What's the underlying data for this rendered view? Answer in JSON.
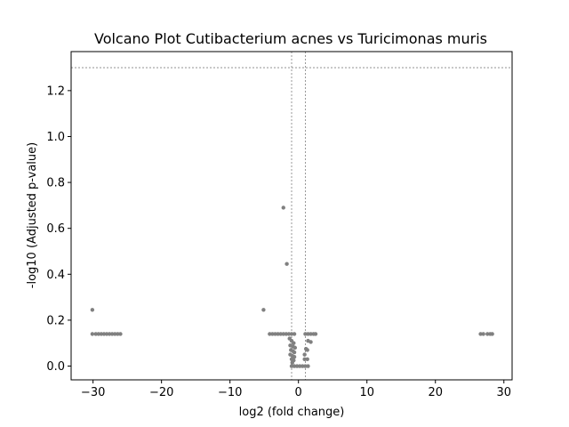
{
  "chart_data": {
    "type": "scatter",
    "title": "Volcano Plot Cutibacterium acnes vs Turicimonas muris",
    "xlabel": "log2 (fold change)",
    "ylabel": "-log10 (Adjusted p-value)",
    "xlim": [
      -33.2,
      31.2
    ],
    "ylim": [
      -0.06,
      1.37
    ],
    "xticks": [
      -30,
      -20,
      -10,
      0,
      10,
      20,
      30
    ],
    "xtick_labels": [
      "−30",
      "−20",
      "−10",
      "0",
      "10",
      "20",
      "30"
    ],
    "yticks": [
      0.0,
      0.2,
      0.4,
      0.6,
      0.8,
      1.0,
      1.2
    ],
    "ytick_labels": [
      "0.0",
      "0.2",
      "0.4",
      "0.6",
      "0.8",
      "1.0",
      "1.2"
    ],
    "threshold_lines": {
      "horizontal": [
        1.3
      ],
      "vertical": [
        -1,
        1
      ],
      "style": "dashed",
      "color": "#808080"
    },
    "grid": false,
    "legend": null,
    "point_color": "#808080",
    "points": [
      {
        "x": -30.1,
        "y": 0.245
      },
      {
        "x": -30.1,
        "y": 0.14
      },
      {
        "x": -29.6,
        "y": 0.14
      },
      {
        "x": -29.2,
        "y": 0.14
      },
      {
        "x": -28.8,
        "y": 0.14
      },
      {
        "x": -28.4,
        "y": 0.14
      },
      {
        "x": -28.0,
        "y": 0.14
      },
      {
        "x": -27.6,
        "y": 0.14
      },
      {
        "x": -27.2,
        "y": 0.14
      },
      {
        "x": -26.8,
        "y": 0.14
      },
      {
        "x": -26.4,
        "y": 0.14
      },
      {
        "x": -26.0,
        "y": 0.14
      },
      {
        "x": -5.1,
        "y": 0.245
      },
      {
        "x": -2.2,
        "y": 0.69
      },
      {
        "x": -1.7,
        "y": 0.445
      },
      {
        "x": -4.2,
        "y": 0.14
      },
      {
        "x": -3.8,
        "y": 0.14
      },
      {
        "x": -3.4,
        "y": 0.14
      },
      {
        "x": -3.0,
        "y": 0.14
      },
      {
        "x": -2.6,
        "y": 0.14
      },
      {
        "x": -2.2,
        "y": 0.14
      },
      {
        "x": -1.8,
        "y": 0.14
      },
      {
        "x": -1.4,
        "y": 0.14
      },
      {
        "x": -1.0,
        "y": 0.14
      },
      {
        "x": -0.6,
        "y": 0.14
      },
      {
        "x": -1.3,
        "y": 0.12
      },
      {
        "x": -1.0,
        "y": 0.11
      },
      {
        "x": -0.7,
        "y": 0.1
      },
      {
        "x": -1.2,
        "y": 0.09
      },
      {
        "x": -0.8,
        "y": 0.085
      },
      {
        "x": -0.5,
        "y": 0.08
      },
      {
        "x": -1.1,
        "y": 0.07
      },
      {
        "x": -0.8,
        "y": 0.065
      },
      {
        "x": -0.6,
        "y": 0.06
      },
      {
        "x": -1.2,
        "y": 0.05
      },
      {
        "x": -0.9,
        "y": 0.045
      },
      {
        "x": -0.6,
        "y": 0.04
      },
      {
        "x": -1.0,
        "y": 0.03
      },
      {
        "x": -0.7,
        "y": 0.025
      },
      {
        "x": -0.9,
        "y": 0.015
      },
      {
        "x": -1.0,
        "y": 0.0
      },
      {
        "x": -0.6,
        "y": 0.0
      },
      {
        "x": -0.2,
        "y": 0.0
      },
      {
        "x": 0.2,
        "y": 0.0
      },
      {
        "x": 0.6,
        "y": 0.0
      },
      {
        "x": 1.0,
        "y": 0.0
      },
      {
        "x": 1.4,
        "y": 0.0
      },
      {
        "x": 0.9,
        "y": 0.05
      },
      {
        "x": 0.9,
        "y": 0.03
      },
      {
        "x": 1.3,
        "y": 0.03
      },
      {
        "x": 1.1,
        "y": 0.075
      },
      {
        "x": 1.3,
        "y": 0.07
      },
      {
        "x": 1.4,
        "y": 0.11
      },
      {
        "x": 1.8,
        "y": 0.105
      },
      {
        "x": 1.0,
        "y": 0.14
      },
      {
        "x": 1.4,
        "y": 0.14
      },
      {
        "x": 1.8,
        "y": 0.14
      },
      {
        "x": 2.2,
        "y": 0.14
      },
      {
        "x": 2.5,
        "y": 0.14
      },
      {
        "x": 26.6,
        "y": 0.14
      },
      {
        "x": 27.0,
        "y": 0.14
      },
      {
        "x": 27.6,
        "y": 0.14
      },
      {
        "x": 28.0,
        "y": 0.14
      },
      {
        "x": 28.3,
        "y": 0.14
      }
    ]
  }
}
